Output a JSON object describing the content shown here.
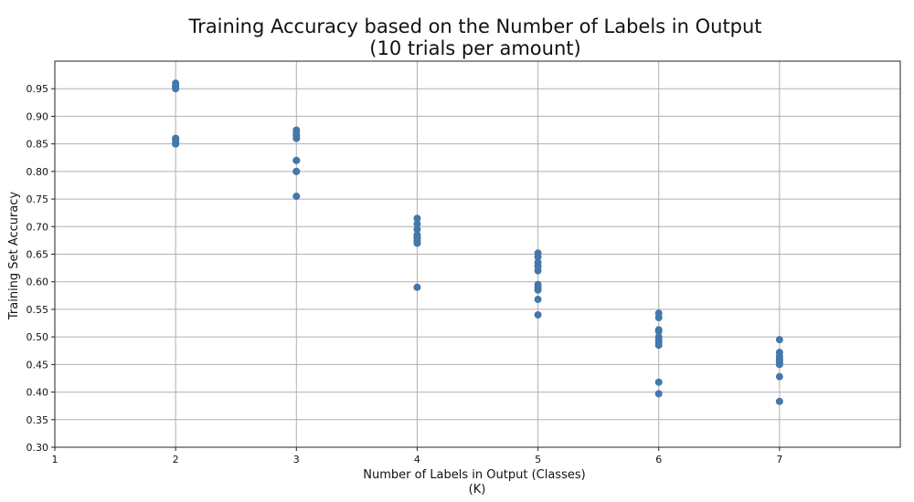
{
  "chart_data": {
    "type": "scatter",
    "title": [
      "Training Accuracy based on the Number of Labels in Output",
      "(10 trials per amount)"
    ],
    "xlabel": [
      "Number of Labels in Output (Classes)",
      "(K)"
    ],
    "ylabel": "Training Set Accuracy",
    "xlim": [
      1,
      8
    ],
    "ylim": [
      0.3,
      1.0
    ],
    "x_ticks": [
      "1",
      "2",
      "3",
      "4",
      "5",
      "6",
      "7"
    ],
    "y_ticks": [
      "0.30",
      "0.35",
      "0.40",
      "0.45",
      "0.50",
      "0.55",
      "0.60",
      "0.65",
      "0.70",
      "0.75",
      "0.80",
      "0.85",
      "0.90",
      "0.95"
    ],
    "grid": true,
    "marker_color": "#4477aa",
    "series": [
      {
        "x": [
          2,
          2,
          2,
          2,
          2,
          2,
          2,
          2,
          2,
          2,
          3,
          3,
          3,
          3,
          3,
          3,
          3,
          3,
          3,
          3,
          4,
          4,
          4,
          4,
          4,
          4,
          4,
          4,
          4,
          4,
          5,
          5,
          5,
          5,
          5,
          5,
          5,
          5,
          5,
          5,
          6,
          6,
          6,
          6,
          6,
          6,
          6,
          6,
          6,
          6,
          7,
          7,
          7,
          7,
          7,
          7,
          7,
          7,
          7,
          7
        ],
        "y": [
          0.96,
          0.955,
          0.95,
          0.86,
          0.855,
          0.85,
          0.86,
          0.85,
          0.955,
          0.85,
          0.875,
          0.87,
          0.865,
          0.86,
          0.86,
          0.82,
          0.82,
          0.8,
          0.8,
          0.755,
          0.715,
          0.705,
          0.695,
          0.685,
          0.68,
          0.675,
          0.67,
          0.67,
          0.68,
          0.59,
          0.652,
          0.645,
          0.635,
          0.628,
          0.62,
          0.595,
          0.59,
          0.585,
          0.568,
          0.54,
          0.543,
          0.535,
          0.513,
          0.51,
          0.5,
          0.495,
          0.49,
          0.485,
          0.418,
          0.397,
          0.495,
          0.472,
          0.465,
          0.46,
          0.458,
          0.455,
          0.452,
          0.45,
          0.428,
          0.383
        ]
      }
    ]
  }
}
